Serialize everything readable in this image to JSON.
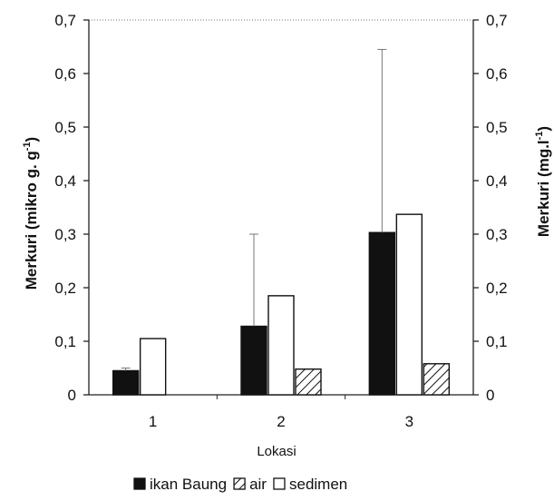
{
  "chart_data": {
    "type": "bar",
    "categories": [
      "1",
      "2",
      "3"
    ],
    "xlabel": "Lokasi",
    "ylabel_left": "Merkuri (mikro g. g",
    "ylabel_left_sup": "-1",
    "ylabel_left_end": ")",
    "ylabel_right": "Merkuri (mg.l",
    "ylabel_right_sup": "-1",
    "ylabel_right_end": ")",
    "ylim": [
      0,
      0.7
    ],
    "yticks": [
      "0",
      "0,1",
      "0,2",
      "0,3",
      "0,4",
      "0,5",
      "0,6",
      "0,7"
    ],
    "grid": false,
    "legend_position": "bottom",
    "series": [
      {
        "name": "ikan Baung",
        "axis": "left",
        "fill": "solid",
        "color": "#111111",
        "values": [
          0.045,
          0.128,
          0.303
        ],
        "error_upper": [
          0.05,
          0.3,
          0.645
        ]
      },
      {
        "name": "air",
        "axis": "right",
        "fill": "hatch",
        "color": "#111111",
        "values": [
          null,
          0.048,
          0.058
        ],
        "error_upper": [
          null,
          null,
          null
        ]
      },
      {
        "name": "sedimen",
        "axis": "left",
        "fill": "open",
        "color": "#111111",
        "values": [
          0.105,
          0.185,
          0.337
        ],
        "error_upper": [
          null,
          null,
          null
        ]
      }
    ]
  }
}
